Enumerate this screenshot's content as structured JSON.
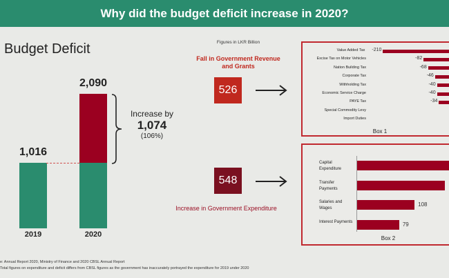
{
  "title": "Why did the budget deficit increase in 2020?",
  "colors": {
    "banner": "#2a8c6e",
    "green": "#2a8c6e",
    "red": "#9b0020",
    "revenue_box": "#c0281e",
    "expenditure_box": "#7a1020"
  },
  "deficit": {
    "heading": "Budget Deficit",
    "increase_label": "Increase by",
    "increase_value": "1,074",
    "increase_pct": "(106%)"
  },
  "middle": {
    "units": "Figures in LKR Billion",
    "revenue_label": "Fall in Government Revenue and Grants",
    "revenue_value": "526",
    "expenditure_label": "Increase in Government Expenditure",
    "expenditure_value": "548"
  },
  "footnotes": [
    "e: Annual Report 2020, Ministry of Finance and 2020 CBSL Annual Report",
    "Total figures on expenditure and deficit differs from CBSL figures as the government has inaccurately portrayed the expenditure for 2019 under 2020"
  ],
  "chart_data": [
    {
      "type": "bar",
      "title": "Budget Deficit",
      "categories": [
        "2019",
        "2020"
      ],
      "values": [
        1016,
        2090
      ],
      "labels": [
        "1,016",
        "2,090"
      ],
      "base_2020": 1016
    },
    {
      "type": "bar",
      "orientation": "horizontal",
      "title": "Box 1",
      "categories": [
        "Value Added Tax",
        "Excise Tax on Motor Vehicles",
        "Nation Building Tax",
        "Corporate Tax",
        "Withholding Tax",
        "Economic Service Charge",
        "PAYE Tax",
        "Special Commodity Levy",
        "Import Duties"
      ],
      "values": [
        -210,
        -82,
        -68,
        -46,
        -40,
        -40,
        -34,
        null,
        null
      ],
      "labels": [
        "-210",
        "-82",
        "-68",
        "-46",
        "-40",
        "-40",
        "-34",
        "",
        ""
      ]
    },
    {
      "type": "bar",
      "orientation": "horizontal",
      "title": "Box 2",
      "categories": [
        "Capital Expenditure",
        "Transfer Payments",
        "Salaries and Wages",
        "Interest Payments"
      ],
      "values": [
        null,
        165,
        108,
        79
      ],
      "labels": [
        "",
        "",
        "108",
        "79"
      ]
    }
  ]
}
